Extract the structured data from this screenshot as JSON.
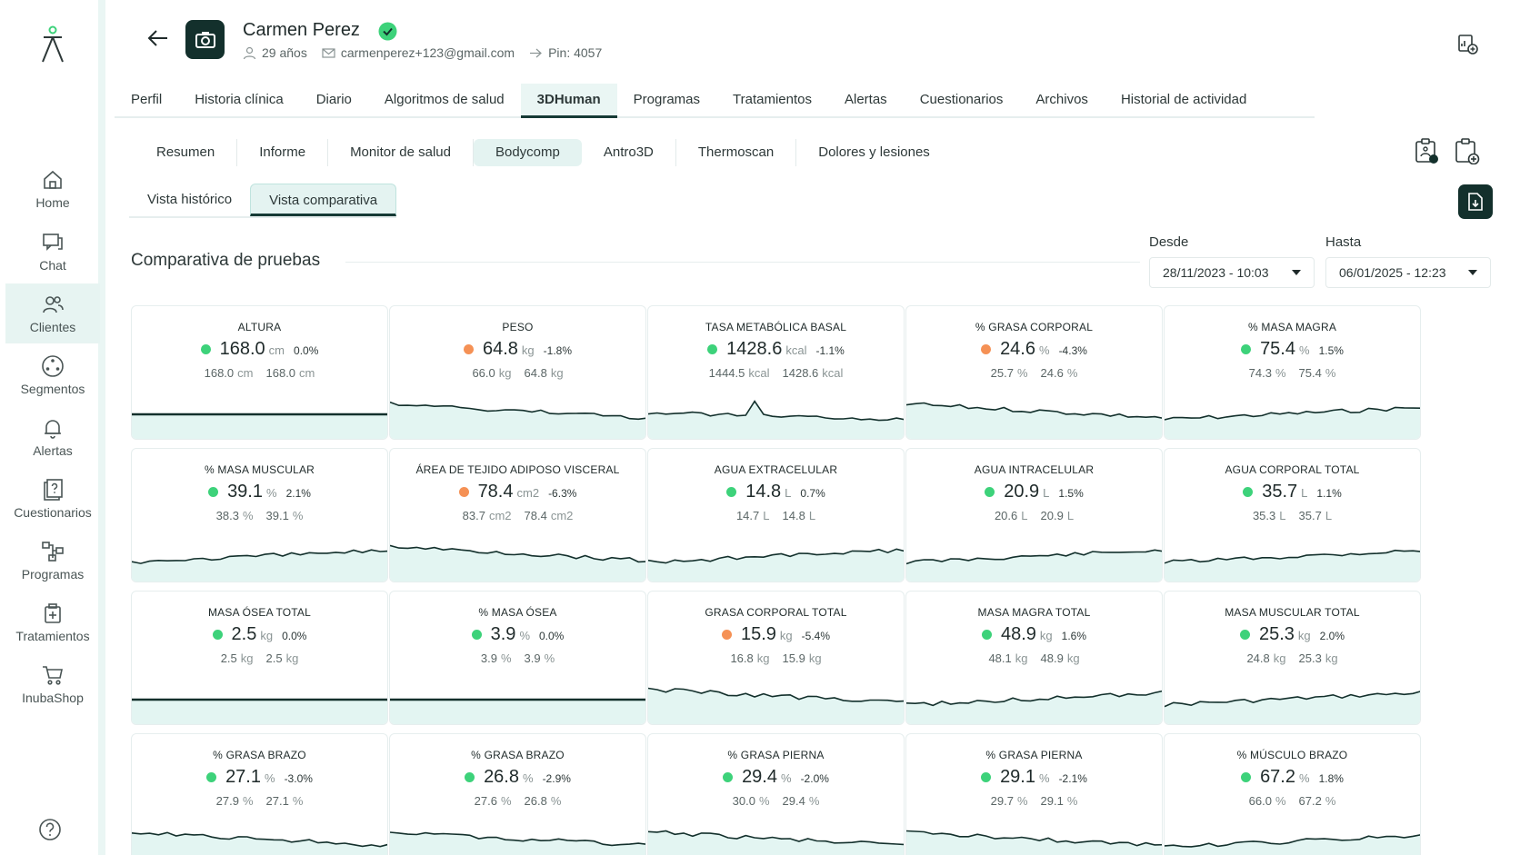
{
  "nav": [
    {
      "key": "home",
      "label": "Home",
      "icon": "home-icon"
    },
    {
      "key": "chat",
      "label": "Chat",
      "icon": "chat-icon"
    },
    {
      "key": "clientes",
      "label": "Clientes",
      "icon": "users-icon"
    },
    {
      "key": "segmentos",
      "label": "Segmentos",
      "icon": "segments-icon"
    },
    {
      "key": "alertas",
      "label": "Alertas",
      "icon": "bell-icon"
    },
    {
      "key": "cuestionarios",
      "label": "Cuestionarios",
      "icon": "questionnaire-icon"
    },
    {
      "key": "programas",
      "label": "Programas",
      "icon": "programs-icon"
    },
    {
      "key": "tratamientos",
      "label": "Tratamientos",
      "icon": "treatment-icon"
    },
    {
      "key": "inubashop",
      "label": "InubaShop",
      "icon": "cart-icon"
    }
  ],
  "client": {
    "name": "Carmen Perez",
    "age": "29 años",
    "email": "carmenperez+123@gmail.com",
    "pin": "Pin: 4057"
  },
  "main_tabs": [
    "Perfil",
    "Historia clínica",
    "Diario",
    "Algoritmos de salud",
    "3DHuman",
    "Programas",
    "Tratamientos",
    "Alertas",
    "Cuestionarios",
    "Archivos",
    "Historial de actividad"
  ],
  "active_main_tab": "3DHuman",
  "sub_tabs": [
    "Resumen",
    "Informe",
    "Monitor de salud",
    "Bodycomp",
    "Antro3D",
    "Thermoscan",
    "Dolores y lesiones"
  ],
  "active_sub_tab": "Bodycomp",
  "view_tabs": [
    "Vista histórico",
    "Vista comparativa"
  ],
  "active_view_tab": "Vista comparativa",
  "section_title": "Comparativa de pruebas",
  "date_from": {
    "label": "Desde",
    "value": "28/11/2023 - 10:03"
  },
  "date_to": {
    "label": "Hasta",
    "value": "06/01/2025 - 12:23"
  },
  "colors": {
    "accent_dark": "#13302c",
    "good": "#3dd27a",
    "bad": "#f59155",
    "spark_fill": "#e3f5f2"
  },
  "metrics": [
    {
      "title": "ALTURA",
      "value": "168.0",
      "unit": "cm",
      "delta": "0.0%",
      "status": "good",
      "first": "168.0",
      "last": "168.0",
      "trend": "flat"
    },
    {
      "title": "PESO",
      "value": "64.8",
      "unit": "kg",
      "delta": "-1.8%",
      "status": "bad",
      "first": "66.0",
      "last": "64.8",
      "trend": "down"
    },
    {
      "title": "TASA METABÓLICA BASAL",
      "value": "1428.6",
      "unit": "kcal",
      "delta": "-1.1%",
      "status": "good",
      "first": "1444.5",
      "last": "1428.6",
      "trend": "spike-down"
    },
    {
      "title": "% GRASA CORPORAL",
      "value": "24.6",
      "unit": "%",
      "delta": "-4.3%",
      "status": "bad",
      "first": "25.7",
      "last": "24.6",
      "trend": "down"
    },
    {
      "title": "% MASA MAGRA",
      "value": "75.4",
      "unit": "%",
      "delta": "1.5%",
      "status": "good",
      "first": "74.3",
      "last": "75.4",
      "trend": "up"
    },
    {
      "title": "% MASA MUSCULAR",
      "value": "39.1",
      "unit": "%",
      "delta": "2.1%",
      "status": "good",
      "first": "38.3",
      "last": "39.1",
      "trend": "up"
    },
    {
      "title": "ÁREA DE TEJIDO ADIPOSO VISCERAL",
      "value": "78.4",
      "unit": "cm2",
      "delta": "-6.3%",
      "status": "bad",
      "first": "83.7",
      "last": "78.4",
      "trend": "down"
    },
    {
      "title": "AGUA EXTRACELULAR",
      "value": "14.8",
      "unit": "L",
      "delta": "0.7%",
      "status": "good",
      "first": "14.7",
      "last": "14.8",
      "trend": "up"
    },
    {
      "title": "AGUA INTRACELULAR",
      "value": "20.9",
      "unit": "L",
      "delta": "1.5%",
      "status": "good",
      "first": "20.6",
      "last": "20.9",
      "trend": "up"
    },
    {
      "title": "AGUA CORPORAL TOTAL",
      "value": "35.7",
      "unit": "L",
      "delta": "1.1%",
      "status": "good",
      "first": "35.3",
      "last": "35.7",
      "trend": "up"
    },
    {
      "title": "MASA ÓSEA TOTAL",
      "value": "2.5",
      "unit": "kg",
      "delta": "0.0%",
      "status": "good",
      "first": "2.5",
      "last": "2.5",
      "trend": "flat"
    },
    {
      "title": "% MASA ÓSEA",
      "value": "3.9",
      "unit": "%",
      "delta": "0.0%",
      "status": "good",
      "first": "3.9",
      "last": "3.9",
      "trend": "flat"
    },
    {
      "title": "GRASA CORPORAL TOTAL",
      "value": "15.9",
      "unit": "kg",
      "delta": "-5.4%",
      "status": "bad",
      "first": "16.8",
      "last": "15.9",
      "trend": "down"
    },
    {
      "title": "MASA MAGRA TOTAL",
      "value": "48.9",
      "unit": "kg",
      "delta": "1.6%",
      "status": "good",
      "first": "48.1",
      "last": "48.9",
      "trend": "up"
    },
    {
      "title": "MASA MUSCULAR TOTAL",
      "value": "25.3",
      "unit": "kg",
      "delta": "2.0%",
      "status": "good",
      "first": "24.8",
      "last": "25.3",
      "trend": "up"
    },
    {
      "title": "% GRASA BRAZO",
      "value": "27.1",
      "unit": "%",
      "delta": "-3.0%",
      "status": "good",
      "first": "27.9",
      "last": "27.1",
      "trend": "down"
    },
    {
      "title": "% GRASA BRAZO",
      "value": "26.8",
      "unit": "%",
      "delta": "-2.9%",
      "status": "good",
      "first": "27.6",
      "last": "26.8",
      "trend": "down"
    },
    {
      "title": "% GRASA PIERNA",
      "value": "29.4",
      "unit": "%",
      "delta": "-2.0%",
      "status": "good",
      "first": "30.0",
      "last": "29.4",
      "trend": "down"
    },
    {
      "title": "% GRASA PIERNA",
      "value": "29.1",
      "unit": "%",
      "delta": "-2.1%",
      "status": "good",
      "first": "29.7",
      "last": "29.1",
      "trend": "down"
    },
    {
      "title": "% MÚSCULO BRAZO",
      "value": "67.2",
      "unit": "%",
      "delta": "1.8%",
      "status": "good",
      "first": "66.0",
      "last": "67.2",
      "trend": "up"
    }
  ]
}
